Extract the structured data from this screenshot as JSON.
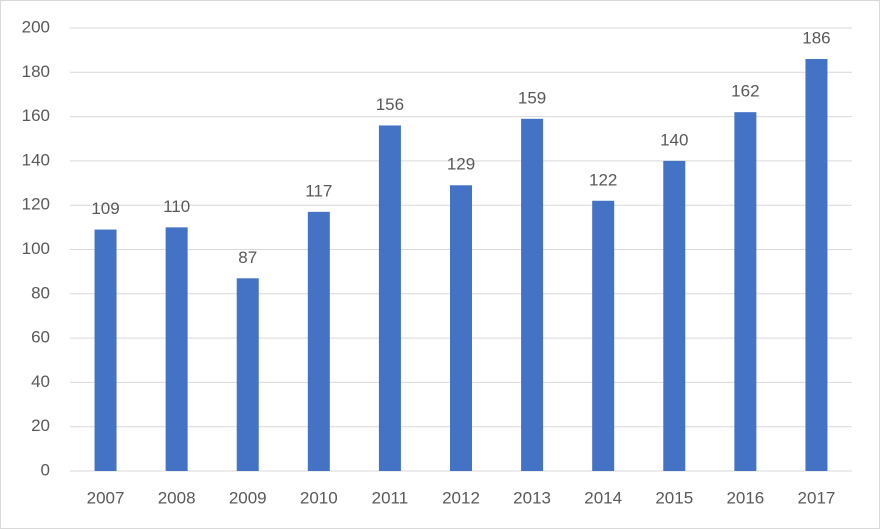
{
  "chart_data": {
    "type": "bar",
    "categories": [
      "2007",
      "2008",
      "2009",
      "2010",
      "2011",
      "2012",
      "2013",
      "2014",
      "2015",
      "2016",
      "2017"
    ],
    "values": [
      109,
      110,
      87,
      117,
      156,
      129,
      159,
      122,
      140,
      162,
      186
    ],
    "color": "#4472c4",
    "ylim": [
      0,
      200
    ],
    "yticks": [
      0,
      20,
      40,
      60,
      80,
      100,
      120,
      140,
      160,
      180,
      200
    ],
    "grid": true
  }
}
